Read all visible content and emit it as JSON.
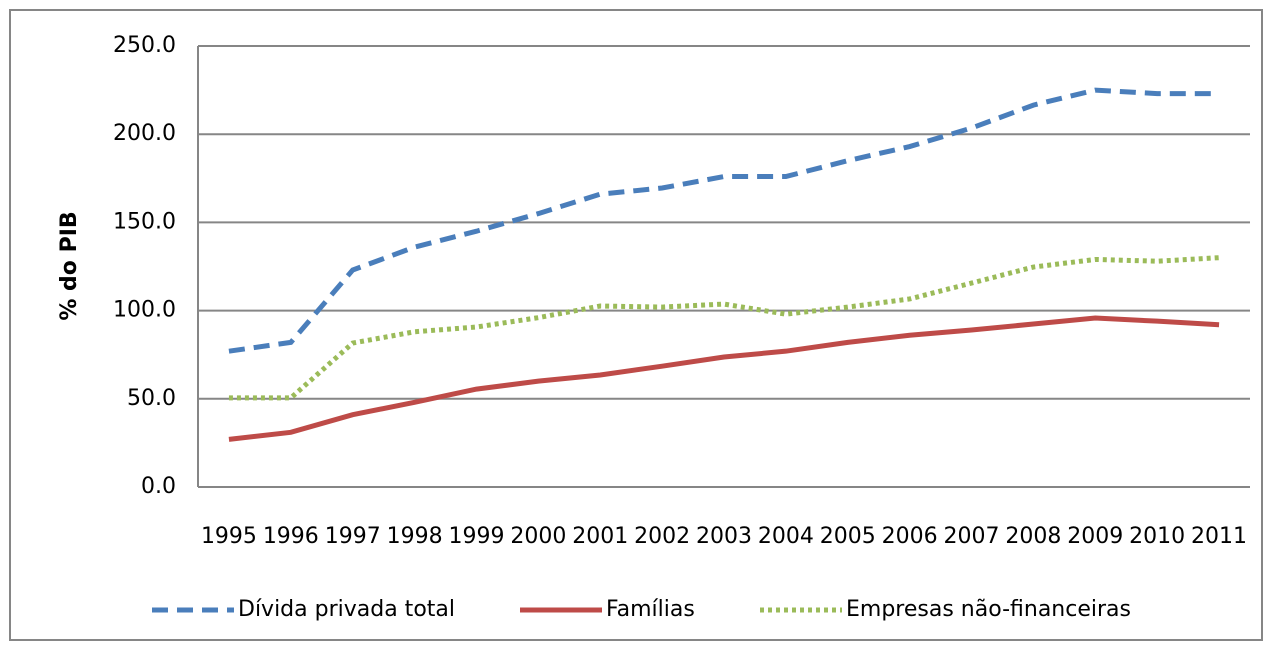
{
  "chart_data": {
    "type": "line",
    "y_label": "% do PIB",
    "categories": [
      "1995",
      "1996",
      "1997",
      "1998",
      "1999",
      "2000",
      "2001",
      "2002",
      "2003",
      "2004",
      "2005",
      "2006",
      "2007",
      "2008",
      "2009",
      "2010",
      "2011"
    ],
    "series": [
      {
        "name": "Dívida privada total",
        "color": "#4a7ebb",
        "line_style": "dashed",
        "values": [
          77,
          82,
          123,
          136,
          145,
          155,
          166,
          169.5,
          176,
          176,
          185,
          193,
          203.5,
          216.5,
          225,
          223,
          223
        ]
      },
      {
        "name": "Famílias",
        "color": "#be4b48",
        "line_style": "solid",
        "values": [
          27,
          31,
          41,
          48,
          55.5,
          60,
          63.5,
          68.5,
          73.7,
          77,
          82,
          86,
          89,
          92.4,
          95.8,
          94,
          92
        ]
      },
      {
        "name": "Empresas não-financeiras",
        "color": "#9bbb59",
        "line_style": "dotted",
        "values": [
          50.5,
          50.5,
          81.6,
          88,
          90.7,
          96,
          102.6,
          102,
          103.7,
          98,
          102,
          106.6,
          115.6,
          124.7,
          129,
          128,
          130
        ]
      }
    ],
    "ylim": [
      0,
      250
    ],
    "yticks": [
      {
        "value": 0,
        "label": "0.0"
      },
      {
        "value": 50,
        "label": "50.0"
      },
      {
        "value": 100,
        "label": "100.0"
      },
      {
        "value": 150,
        "label": "150.0"
      },
      {
        "value": 200,
        "label": "200.0"
      },
      {
        "value": 250,
        "label": "250.0"
      }
    ],
    "grid": true,
    "legend": "bottom"
  }
}
